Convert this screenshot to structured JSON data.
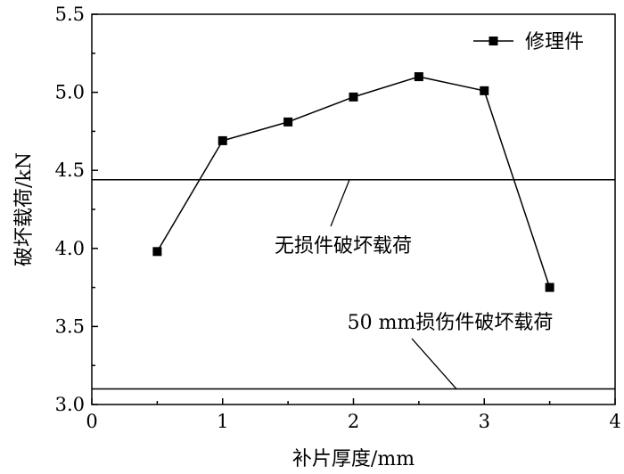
{
  "chart_data": {
    "type": "line",
    "title": "",
    "xlabel": "补片厚度/mm",
    "ylabel": "破坏载荷/kN",
    "xlim": [
      0,
      4
    ],
    "ylim": [
      3.0,
      5.5
    ],
    "xticks": [
      "0",
      "1",
      "2",
      "3",
      "4"
    ],
    "yticks": [
      "3.0",
      "3.5",
      "4.0",
      "4.5",
      "5.0",
      "5.5"
    ],
    "series": [
      {
        "name": "修理件",
        "marker": "square",
        "color": "#000000",
        "x": [
          0.5,
          1.0,
          1.5,
          2.0,
          2.5,
          3.0,
          3.5
        ],
        "y": [
          3.98,
          4.69,
          4.81,
          4.97,
          5.1,
          5.01,
          3.75
        ]
      }
    ],
    "reference_lines": [
      {
        "label": "无损件破坏载荷",
        "y": 4.44
      },
      {
        "label": "50 mm损伤件破坏载荷",
        "y": 3.1
      }
    ],
    "legend_position": "top-right",
    "grid": false
  }
}
